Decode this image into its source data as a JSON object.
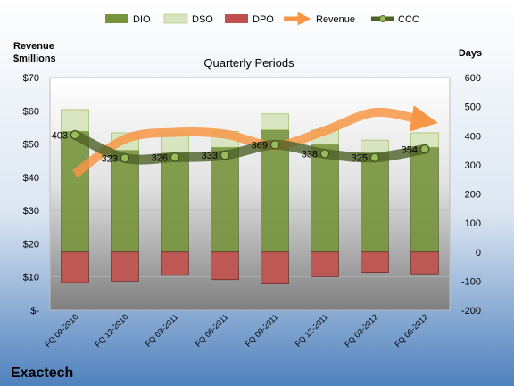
{
  "chart_data": {
    "type": "bar",
    "title": "Quarterly Periods",
    "company": "Exactech",
    "left_axis": {
      "label_line1": "Revenue",
      "label_line2": "$millions",
      "ticks": [
        "$-",
        "$10",
        "$20",
        "$30",
        "$40",
        "$50",
        "$60",
        "$70"
      ],
      "range": [
        0,
        70
      ]
    },
    "right_axis": {
      "label": "Days",
      "ticks": [
        "-200",
        "-100",
        "0",
        "100",
        "200",
        "300",
        "400",
        "500",
        "600"
      ],
      "range": [
        -200,
        600
      ]
    },
    "categories": [
      "FQ 09-2010",
      "FQ 12-2010",
      "FQ 03-2011",
      "FQ 06-2011",
      "FQ 09-2011",
      "FQ 12-2011",
      "FQ 03-2012",
      "FQ 06-2012"
    ],
    "legend_position": "top",
    "series": [
      {
        "name": "DIO",
        "axis": "right",
        "color": "#77933C",
        "values": [
          415,
          350,
          340,
          360,
          420,
          370,
          340,
          360
        ]
      },
      {
        "name": "DSO",
        "axis": "right",
        "color": "#D7E4BD",
        "values": [
          75,
          60,
          70,
          55,
          55,
          50,
          45,
          50
        ]
      },
      {
        "name": "DPO",
        "axis": "right",
        "color": "#C0504D",
        "values": [
          -105,
          -100,
          -80,
          -95,
          -110,
          -85,
          -70,
          -75
        ]
      },
      {
        "name": "Revenue",
        "axis": "left",
        "color": "#F79646",
        "values": [
          41,
          51.5,
          53.5,
          53,
          49.5,
          54,
          59.5,
          57
        ]
      },
      {
        "name": "CCC",
        "axis": "right",
        "color": "#4F6228",
        "values": [
          403,
          323,
          326,
          333,
          369,
          338,
          325,
          354
        ]
      }
    ],
    "ccc_labels": [
      "403",
      "323",
      "326",
      "333",
      "369",
      "338",
      "325",
      "354"
    ]
  }
}
